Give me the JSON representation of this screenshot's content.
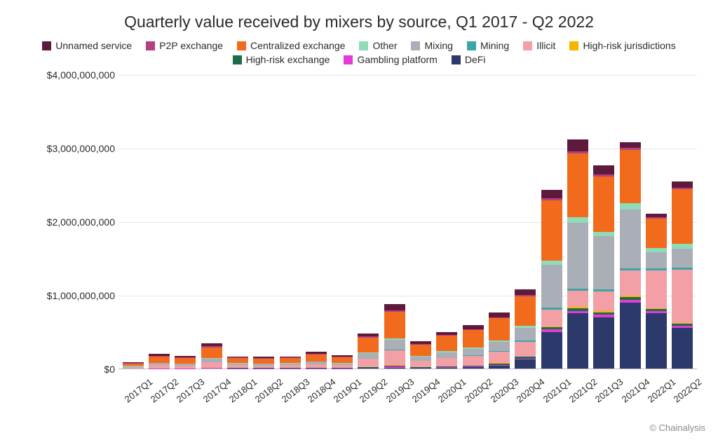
{
  "title": "Quarterly value received by mixers by source, Q1 2017 - Q2 2022",
  "credit": "© Chainalysis",
  "chart": {
    "type": "stacked-bar",
    "background_color": "#ffffff",
    "grid_color": "#e5e5e5",
    "axis_color": "#bbbbbb",
    "text_color": "#2a2a2a",
    "title_fontsize": 23,
    "label_fontsize": 14,
    "ymax": 4000000000,
    "ytick_step": 1000000000,
    "yticks": [
      {
        "value": 0,
        "label": "$0"
      },
      {
        "value": 1000000000,
        "label": "$1,000,000,000"
      },
      {
        "value": 2000000000,
        "label": "$2,000,000,000"
      },
      {
        "value": 3000000000,
        "label": "$3,000,000,000"
      },
      {
        "value": 4000000000,
        "label": "$4,000,000,000"
      }
    ],
    "series_order": [
      "defi",
      "gambling",
      "high_risk_exchange",
      "high_risk_jurisdictions",
      "illicit",
      "mining",
      "mixing",
      "other",
      "centralized_exchange",
      "p2p_exchange",
      "unnamed_service"
    ],
    "series": {
      "unnamed_service": {
        "label": "Unnamed service",
        "color": "#5e1a3d"
      },
      "p2p_exchange": {
        "label": "P2P exchange",
        "color": "#b4407d"
      },
      "centralized_exchange": {
        "label": "Centralized exchange",
        "color": "#f26a1b"
      },
      "other": {
        "label": "Other",
        "color": "#8edcb8"
      },
      "mixing": {
        "label": "Mixing",
        "color": "#a9aeb7"
      },
      "mining": {
        "label": "Mining",
        "color": "#3aa6a6"
      },
      "illicit": {
        "label": "Illicit",
        "color": "#f2a0a6"
      },
      "high_risk_jurisdictions": {
        "label": "High-risk jurisdictions",
        "color": "#f7b500"
      },
      "high_risk_exchange": {
        "label": "High-risk exchange",
        "color": "#1d6b4a"
      },
      "gambling": {
        "label": "Gambling platform",
        "color": "#e43bd8"
      },
      "defi": {
        "label": "DeFi",
        "color": "#2c3a6b"
      }
    },
    "legend_order": [
      "unnamed_service",
      "p2p_exchange",
      "centralized_exchange",
      "other",
      "mixing",
      "mining",
      "illicit",
      "high_risk_jurisdictions",
      "high_risk_exchange",
      "gambling",
      "defi"
    ],
    "categories": [
      "2017Q1",
      "2017Q2",
      "2017Q3",
      "2017Q4",
      "2018Q1",
      "2018Q2",
      "2018Q3",
      "2018Q4",
      "2019Q1",
      "2019Q2",
      "2019Q3",
      "2019Q4",
      "2020Q1",
      "2020Q2",
      "2020Q3",
      "2020Q4",
      "2021Q1",
      "2021Q2",
      "2021Q3",
      "2021Q4",
      "2022Q1",
      "2022Q2"
    ],
    "data": {
      "2017Q1": {
        "defi": 0,
        "gambling": 0,
        "high_risk_exchange": 0,
        "high_risk_jurisdictions": 0,
        "illicit": 20000000,
        "mining": 0,
        "mixing": 10000000,
        "other": 5000000,
        "centralized_exchange": 30000000,
        "p2p_exchange": 8000000,
        "unnamed_service": 10000000
      },
      "2017Q2": {
        "defi": 0,
        "gambling": 2000000,
        "high_risk_exchange": 0,
        "high_risk_jurisdictions": 0,
        "illicit": 45000000,
        "mining": 0,
        "mixing": 25000000,
        "other": 8000000,
        "centralized_exchange": 85000000,
        "p2p_exchange": 10000000,
        "unnamed_service": 25000000
      },
      "2017Q3": {
        "defi": 0,
        "gambling": 2000000,
        "high_risk_exchange": 0,
        "high_risk_jurisdictions": 0,
        "illicit": 40000000,
        "mining": 0,
        "mixing": 22000000,
        "other": 7000000,
        "centralized_exchange": 75000000,
        "p2p_exchange": 8000000,
        "unnamed_service": 22000000
      },
      "2017Q4": {
        "defi": 0,
        "gambling": 5000000,
        "high_risk_exchange": 5000000,
        "high_risk_jurisdictions": 0,
        "illicit": 80000000,
        "mining": 0,
        "mixing": 45000000,
        "other": 12000000,
        "centralized_exchange": 140000000,
        "p2p_exchange": 15000000,
        "unnamed_service": 40000000
      },
      "2018Q1": {
        "defi": 0,
        "gambling": 2000000,
        "high_risk_exchange": 3000000,
        "high_risk_jurisdictions": 0,
        "illicit": 40000000,
        "mining": 0,
        "mixing": 22000000,
        "other": 6000000,
        "centralized_exchange": 70000000,
        "p2p_exchange": 6000000,
        "unnamed_service": 18000000
      },
      "2018Q2": {
        "defi": 0,
        "gambling": 2000000,
        "high_risk_exchange": 3000000,
        "high_risk_jurisdictions": 0,
        "illicit": 38000000,
        "mining": 0,
        "mixing": 20000000,
        "other": 6000000,
        "centralized_exchange": 65000000,
        "p2p_exchange": 6000000,
        "unnamed_service": 18000000
      },
      "2018Q3": {
        "defi": 0,
        "gambling": 2000000,
        "high_risk_exchange": 3000000,
        "high_risk_jurisdictions": 0,
        "illicit": 40000000,
        "mining": 0,
        "mixing": 22000000,
        "other": 6000000,
        "centralized_exchange": 70000000,
        "p2p_exchange": 6000000,
        "unnamed_service": 18000000
      },
      "2018Q4": {
        "defi": 0,
        "gambling": 3000000,
        "high_risk_exchange": 4000000,
        "high_risk_jurisdictions": 0,
        "illicit": 55000000,
        "mining": 0,
        "mixing": 30000000,
        "other": 8000000,
        "centralized_exchange": 95000000,
        "p2p_exchange": 8000000,
        "unnamed_service": 25000000
      },
      "2019Q1": {
        "defi": 0,
        "gambling": 2000000,
        "high_risk_exchange": 3000000,
        "high_risk_jurisdictions": 0,
        "illicit": 42000000,
        "mining": 0,
        "mixing": 24000000,
        "other": 6000000,
        "centralized_exchange": 78000000,
        "p2p_exchange": 6000000,
        "unnamed_service": 20000000
      },
      "2019Q2": {
        "defi": 5000000,
        "gambling": 8000000,
        "high_risk_exchange": 10000000,
        "high_risk_jurisdictions": 0,
        "illicit": 110000000,
        "mining": 5000000,
        "mixing": 70000000,
        "other": 15000000,
        "centralized_exchange": 200000000,
        "p2p_exchange": 12000000,
        "unnamed_service": 45000000
      },
      "2019Q3": {
        "defi": 10000000,
        "gambling": 15000000,
        "high_risk_exchange": 18000000,
        "high_risk_jurisdictions": 5000000,
        "illicit": 200000000,
        "mining": 10000000,
        "mixing": 130000000,
        "other": 25000000,
        "centralized_exchange": 360000000,
        "p2p_exchange": 20000000,
        "unnamed_service": 80000000
      },
      "2019Q4": {
        "defi": 5000000,
        "gambling": 6000000,
        "high_risk_exchange": 8000000,
        "high_risk_jurisdictions": 0,
        "illicit": 85000000,
        "mining": 4000000,
        "mixing": 55000000,
        "other": 12000000,
        "centralized_exchange": 150000000,
        "p2p_exchange": 8000000,
        "unnamed_service": 35000000
      },
      "2020Q1": {
        "defi": 8000000,
        "gambling": 8000000,
        "high_risk_exchange": 10000000,
        "high_risk_jurisdictions": 3000000,
        "illicit": 110000000,
        "mining": 6000000,
        "mixing": 75000000,
        "other": 15000000,
        "centralized_exchange": 210000000,
        "p2p_exchange": 10000000,
        "unnamed_service": 45000000
      },
      "2020Q2": {
        "defi": 15000000,
        "gambling": 10000000,
        "high_risk_exchange": 12000000,
        "high_risk_jurisdictions": 3000000,
        "illicit": 130000000,
        "mining": 8000000,
        "mixing": 90000000,
        "other": 18000000,
        "centralized_exchange": 240000000,
        "p2p_exchange": 12000000,
        "unnamed_service": 50000000
      },
      "2020Q3": {
        "defi": 40000000,
        "gambling": 12000000,
        "high_risk_exchange": 15000000,
        "high_risk_jurisdictions": 5000000,
        "illicit": 160000000,
        "mining": 10000000,
        "mixing": 120000000,
        "other": 22000000,
        "centralized_exchange": 300000000,
        "p2p_exchange": 14000000,
        "unnamed_service": 60000000
      },
      "2020Q4": {
        "defi": 120000000,
        "gambling": 18000000,
        "high_risk_exchange": 20000000,
        "high_risk_jurisdictions": 8000000,
        "illicit": 200000000,
        "mining": 14000000,
        "mixing": 170000000,
        "other": 30000000,
        "centralized_exchange": 400000000,
        "p2p_exchange": 18000000,
        "unnamed_service": 80000000
      },
      "2021Q1": {
        "defi": 500000000,
        "gambling": 30000000,
        "high_risk_exchange": 30000000,
        "high_risk_jurisdictions": 12000000,
        "illicit": 230000000,
        "mining": 25000000,
        "mixing": 580000000,
        "other": 60000000,
        "centralized_exchange": 820000000,
        "p2p_exchange": 25000000,
        "unnamed_service": 120000000
      },
      "2021Q2": {
        "defi": 750000000,
        "gambling": 35000000,
        "high_risk_exchange": 35000000,
        "high_risk_jurisdictions": 15000000,
        "illicit": 220000000,
        "mining": 30000000,
        "mixing": 900000000,
        "other": 70000000,
        "centralized_exchange": 870000000,
        "p2p_exchange": 28000000,
        "unnamed_service": 160000000
      },
      "2021Q3": {
        "defi": 700000000,
        "gambling": 32000000,
        "high_risk_exchange": 32000000,
        "high_risk_jurisdictions": 14000000,
        "illicit": 270000000,
        "mining": 28000000,
        "mixing": 720000000,
        "other": 65000000,
        "centralized_exchange": 750000000,
        "p2p_exchange": 25000000,
        "unnamed_service": 130000000
      },
      "2021Q4": {
        "defi": 900000000,
        "gambling": 35000000,
        "high_risk_exchange": 35000000,
        "high_risk_jurisdictions": 16000000,
        "illicit": 350000000,
        "mining": 30000000,
        "mixing": 800000000,
        "other": 80000000,
        "centralized_exchange": 730000000,
        "p2p_exchange": 28000000,
        "unnamed_service": 70000000
      },
      "2022Q1": {
        "defi": 750000000,
        "gambling": 28000000,
        "high_risk_exchange": 28000000,
        "high_risk_jurisdictions": 12000000,
        "illicit": 520000000,
        "mining": 24000000,
        "mixing": 220000000,
        "other": 60000000,
        "centralized_exchange": 400000000,
        "p2p_exchange": 20000000,
        "unnamed_service": 45000000
      },
      "2022Q2": {
        "defi": 550000000,
        "gambling": 30000000,
        "high_risk_exchange": 30000000,
        "high_risk_jurisdictions": 14000000,
        "illicit": 720000000,
        "mining": 26000000,
        "mixing": 260000000,
        "other": 70000000,
        "centralized_exchange": 740000000,
        "p2p_exchange": 22000000,
        "unnamed_service": 80000000
      }
    }
  }
}
